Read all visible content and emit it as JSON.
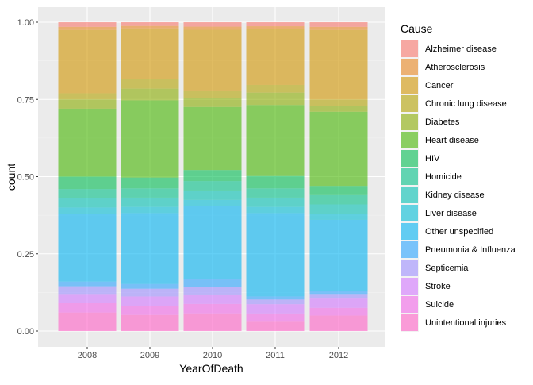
{
  "chart_data": {
    "type": "bar",
    "stacked": true,
    "position": "fill",
    "xlabel": "YearOfDeath",
    "ylabel": "count",
    "ylim": [
      0,
      1
    ],
    "yticks": [
      "0.00",
      "0.25",
      "0.50",
      "0.75",
      "1.00"
    ],
    "ytick_values": [
      0,
      0.25,
      0.5,
      0.75,
      1.0
    ],
    "grid": true,
    "legend_title": "Cause",
    "legend_position": "right",
    "bar_opacity": 0.6,
    "categories": [
      "2008",
      "2009",
      "2010",
      "2011",
      "2012"
    ],
    "series": [
      {
        "name": "Alzheimer disease",
        "color": "#F8766D",
        "values": [
          0.015,
          0.012,
          0.014,
          0.013,
          0.015
        ]
      },
      {
        "name": "Atherosclerosis",
        "color": "#E7851E",
        "values": [
          0.01,
          0.008,
          0.01,
          0.01,
          0.01
        ]
      },
      {
        "name": "Cancer",
        "color": "#D09400",
        "values": [
          0.205,
          0.165,
          0.195,
          0.18,
          0.225
        ]
      },
      {
        "name": "Chronic lung disease",
        "color": "#B2A100",
        "values": [
          0.02,
          0.03,
          0.022,
          0.025,
          0.02
        ]
      },
      {
        "name": "Diabetes",
        "color": "#89AC00",
        "values": [
          0.03,
          0.038,
          0.028,
          0.04,
          0.02
        ]
      },
      {
        "name": "Heart disease",
        "color": "#45B500",
        "values": [
          0.22,
          0.25,
          0.2,
          0.23,
          0.24
        ]
      },
      {
        "name": "HIV",
        "color": "#00BC51",
        "values": [
          0.04,
          0.035,
          0.035,
          0.04,
          0.03
        ]
      },
      {
        "name": "Homicide",
        "color": "#00C087",
        "values": [
          0.03,
          0.03,
          0.03,
          0.03,
          0.03
        ]
      },
      {
        "name": "Kidney disease",
        "color": "#00C0B2",
        "values": [
          0.03,
          0.03,
          0.03,
          0.03,
          0.03
        ]
      },
      {
        "name": "Liver disease",
        "color": "#00BCD6",
        "values": [
          0.02,
          0.02,
          0.02,
          0.02,
          0.02
        ]
      },
      {
        "name": "Other unspecified",
        "color": "#00B3F2",
        "values": [
          0.22,
          0.23,
          0.23,
          0.27,
          0.23
        ]
      },
      {
        "name": "Pneumonia & Influenza",
        "color": "#29A3FF",
        "values": [
          0.015,
          0.015,
          0.025,
          0.01,
          0.01
        ]
      },
      {
        "name": "Septicemia",
        "color": "#9C8DFF",
        "values": [
          0.025,
          0.025,
          0.025,
          0.015,
          0.015
        ]
      },
      {
        "name": "Stroke",
        "color": "#D277FF",
        "values": [
          0.03,
          0.03,
          0.03,
          0.03,
          0.03
        ]
      },
      {
        "name": "Suicide",
        "color": "#F166E8",
        "values": [
          0.03,
          0.03,
          0.03,
          0.027,
          0.025
        ]
      },
      {
        "name": "Unintentional injuries",
        "color": "#FF61C7",
        "values": [
          0.06,
          0.052,
          0.056,
          0.03,
          0.05
        ]
      }
    ]
  },
  "colors": {
    "panel_background": "#EBEBEB",
    "gridline_major": "#FFFFFF",
    "gridline_minor": "#F5F5F5",
    "axis_text": "#4D4D4D",
    "tick_mark": "#333333"
  }
}
